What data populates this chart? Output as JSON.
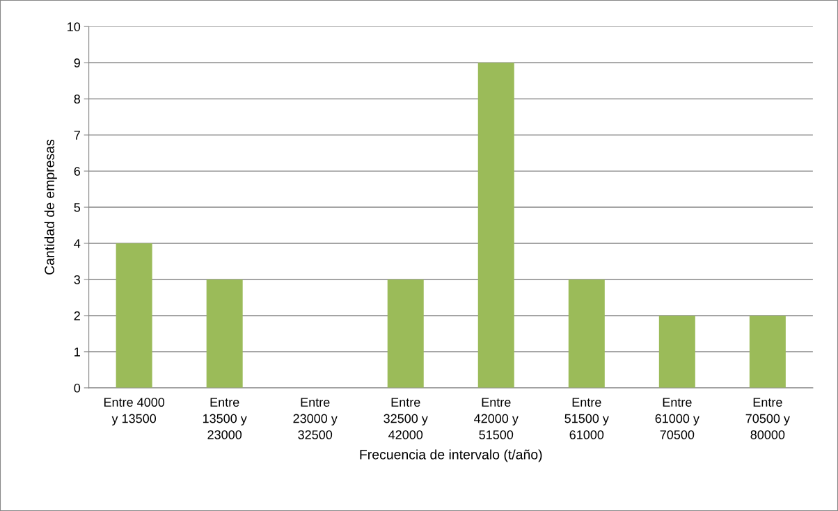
{
  "chart_data": {
    "type": "bar",
    "xlabel": "Frecuencia de intervalo (t/año)",
    "ylabel": "Cantidad de empresas",
    "categories": [
      "Entre 4000\ny 13500",
      "Entre\n13500 y\n23000",
      "Entre\n23000 y\n32500",
      "Entre\n32500 y\n42000",
      "Entre\n42000 y\n51500",
      "Entre\n51500 y\n61000",
      "Entre\n61000 y\n70500",
      "Entre\n70500 y\n80000"
    ],
    "values": [
      4,
      3,
      0,
      3,
      9,
      3,
      2,
      2
    ],
    "color": "#9bbb59",
    "ylim": [
      0,
      10
    ],
    "yticks": [
      0,
      1,
      2,
      3,
      4,
      5,
      6,
      7,
      8,
      9,
      10
    ],
    "grid": "y",
    "legend": false
  }
}
